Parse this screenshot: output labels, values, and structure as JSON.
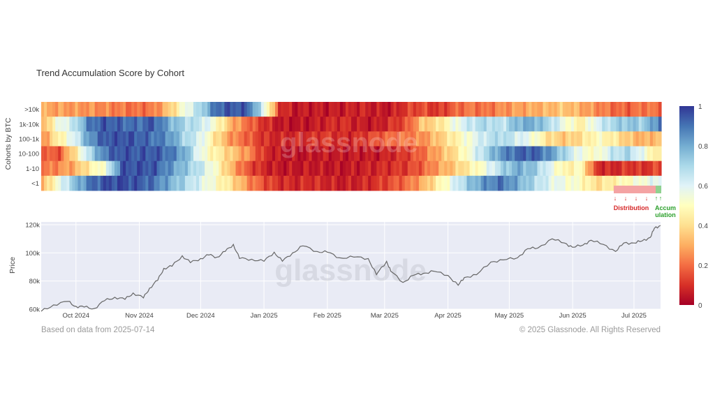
{
  "chart_data": [
    {
      "type": "heatmap",
      "title": "Trend Accumulation Score by Cohort",
      "ylabel": "Cohorts by BTC",
      "rows": [
        ">10k",
        "1k-10k",
        "100-1k",
        "10-100",
        "1-10",
        "<1"
      ],
      "colorbar": {
        "min": 0,
        "max": 1,
        "ticks": [
          1,
          0.8,
          0.6,
          0.4,
          0.2,
          0
        ]
      },
      "colorscale": [
        "#a50026",
        "#d73027",
        "#f46d43",
        "#fdae61",
        "#fee090",
        "#ffffbf",
        "#e0f3f8",
        "#abd9e9",
        "#74add1",
        "#4575b4",
        "#313695"
      ],
      "time_range": [
        "2024-09-14",
        "2025-07-14"
      ],
      "scores": [
        [
          0.3,
          0.28,
          0.27,
          0.26,
          0.24,
          0.22,
          0.2,
          0.22,
          0.35,
          0.55,
          0.7,
          0.92,
          0.95,
          0.93,
          0.6,
          0.1,
          0.05,
          0.06,
          0.05,
          0.06,
          0.08,
          0.06,
          0.05,
          0.12,
          0.15,
          0.1,
          0.18,
          0.22,
          0.2,
          0.25,
          0.28,
          0.3,
          0.32,
          0.35,
          0.3,
          0.25,
          0.2,
          0.18,
          0.22,
          0.2
        ],
        [
          0.3,
          0.55,
          0.65,
          0.9,
          0.95,
          0.92,
          0.9,
          0.95,
          0.8,
          0.7,
          0.65,
          0.5,
          0.3,
          0.2,
          0.1,
          0.05,
          0.04,
          0.05,
          0.08,
          0.1,
          0.06,
          0.05,
          0.1,
          0.15,
          0.35,
          0.4,
          0.55,
          0.65,
          0.7,
          0.65,
          0.78,
          0.8,
          0.7,
          0.55,
          0.45,
          0.6,
          0.7,
          0.75,
          0.72,
          0.9
        ],
        [
          0.25,
          0.45,
          0.6,
          0.85,
          0.95,
          0.96,
          0.94,
          0.9,
          0.85,
          0.7,
          0.6,
          0.4,
          0.25,
          0.18,
          0.1,
          0.08,
          0.08,
          0.1,
          0.12,
          0.08,
          0.1,
          0.15,
          0.2,
          0.22,
          0.25,
          0.35,
          0.45,
          0.55,
          0.65,
          0.7,
          0.62,
          0.55,
          0.4,
          0.35,
          0.4,
          0.5,
          0.45,
          0.35,
          0.3,
          0.35
        ],
        [
          0.2,
          0.15,
          0.4,
          0.7,
          0.9,
          0.96,
          0.94,
          0.95,
          0.9,
          0.8,
          0.55,
          0.45,
          0.35,
          0.25,
          0.1,
          0.05,
          0.04,
          0.05,
          0.06,
          0.05,
          0.06,
          0.05,
          0.08,
          0.12,
          0.2,
          0.3,
          0.4,
          0.55,
          0.7,
          0.85,
          0.92,
          0.94,
          0.85,
          0.7,
          0.55,
          0.5,
          0.65,
          0.7,
          0.55,
          0.4
        ],
        [
          0.2,
          0.25,
          0.3,
          0.45,
          0.55,
          0.95,
          0.96,
          0.95,
          0.85,
          0.75,
          0.65,
          0.5,
          0.3,
          0.15,
          0.08,
          0.05,
          0.05,
          0.06,
          0.05,
          0.05,
          0.06,
          0.08,
          0.1,
          0.12,
          0.18,
          0.28,
          0.35,
          0.45,
          0.55,
          0.7,
          0.8,
          0.75,
          0.6,
          0.45,
          0.5,
          0.1,
          0.08,
          0.12,
          0.1,
          0.15
        ],
        [
          0.3,
          0.55,
          0.75,
          0.9,
          0.96,
          0.97,
          0.95,
          0.9,
          0.8,
          0.7,
          0.6,
          0.5,
          0.4,
          0.25,
          0.15,
          0.1,
          0.08,
          0.1,
          0.08,
          0.06,
          0.08,
          0.1,
          0.15,
          0.2,
          0.3,
          0.45,
          0.6,
          0.75,
          0.85,
          0.9,
          0.8,
          0.7,
          0.6,
          0.55,
          0.5,
          0.4,
          0.45,
          0.5,
          0.55,
          0.6
        ]
      ],
      "watermark": "glassnode"
    },
    {
      "type": "line",
      "ylabel": "Price",
      "ylim": [
        60000,
        120000
      ],
      "yticks": [
        60000,
        80000,
        100000,
        120000
      ],
      "ytick_labels": [
        "60k",
        "80k",
        "100k",
        "120k"
      ],
      "xtick_labels": [
        "Oct 2024",
        "Nov 2024",
        "Dec 2024",
        "Jan 2025",
        "Feb 2025",
        "Mar 2025",
        "Apr 2025",
        "May 2025",
        "Jun 2025",
        "Jul 2025"
      ],
      "xtick_dates": [
        "2024-10-01",
        "2024-11-01",
        "2024-12-01",
        "2025-01-01",
        "2025-02-01",
        "2025-03-01",
        "2025-04-01",
        "2025-05-01",
        "2025-06-01",
        "2025-07-01"
      ],
      "x": [
        "2024-09-14",
        "2024-09-20",
        "2024-09-27",
        "2024-10-01",
        "2024-10-05",
        "2024-10-10",
        "2024-10-15",
        "2024-10-20",
        "2024-10-25",
        "2024-10-29",
        "2024-11-03",
        "2024-11-06",
        "2024-11-10",
        "2024-11-13",
        "2024-11-17",
        "2024-11-22",
        "2024-11-26",
        "2024-12-01",
        "2024-12-05",
        "2024-12-09",
        "2024-12-13",
        "2024-12-17",
        "2024-12-20",
        "2024-12-26",
        "2025-01-01",
        "2025-01-06",
        "2025-01-10",
        "2025-01-15",
        "2025-01-20",
        "2025-01-27",
        "2025-02-01",
        "2025-02-07",
        "2025-02-14",
        "2025-02-21",
        "2025-02-25",
        "2025-03-02",
        "2025-03-04",
        "2025-03-10",
        "2025-03-15",
        "2025-03-20",
        "2025-03-25",
        "2025-04-01",
        "2025-04-06",
        "2025-04-09",
        "2025-04-15",
        "2025-04-22",
        "2025-04-28",
        "2025-05-05",
        "2025-05-10",
        "2025-05-15",
        "2025-05-22",
        "2025-05-28",
        "2025-06-01",
        "2025-06-06",
        "2025-06-10",
        "2025-06-16",
        "2025-06-22",
        "2025-06-26",
        "2025-07-01",
        "2025-07-05",
        "2025-07-09",
        "2025-07-11",
        "2025-07-14"
      ],
      "y": [
        58500,
        63000,
        65500,
        62000,
        61500,
        60500,
        66000,
        68500,
        67000,
        71500,
        68000,
        75000,
        80500,
        89000,
        90500,
        98000,
        93000,
        96000,
        98500,
        97000,
        101000,
        106000,
        96000,
        95500,
        94000,
        100500,
        94000,
        100000,
        105000,
        101000,
        100500,
        96500,
        97000,
        96000,
        84500,
        94000,
        87000,
        79000,
        84000,
        85500,
        87000,
        84000,
        77000,
        82500,
        84500,
        93500,
        95000,
        96500,
        103000,
        103500,
        110000,
        107000,
        104000,
        105500,
        109000,
        106000,
        101000,
        107000,
        107000,
        108500,
        111000,
        117500,
        119500
      ]
    }
  ],
  "annotations": {
    "distribution": "Distribution",
    "accumulation_line1": "Accum",
    "accumulation_line2": "ulation",
    "arrow_down": "↓",
    "arrow_up": "↑"
  },
  "footer": {
    "left": "Based on data from 2025-07-14",
    "right": "© 2025 Glassnode. All Rights Reserved"
  },
  "colors": {
    "distribution": "#d62728",
    "accumulation": "#2ca02c",
    "price_line": "#666666",
    "price_bg": "#e9ebf5"
  }
}
